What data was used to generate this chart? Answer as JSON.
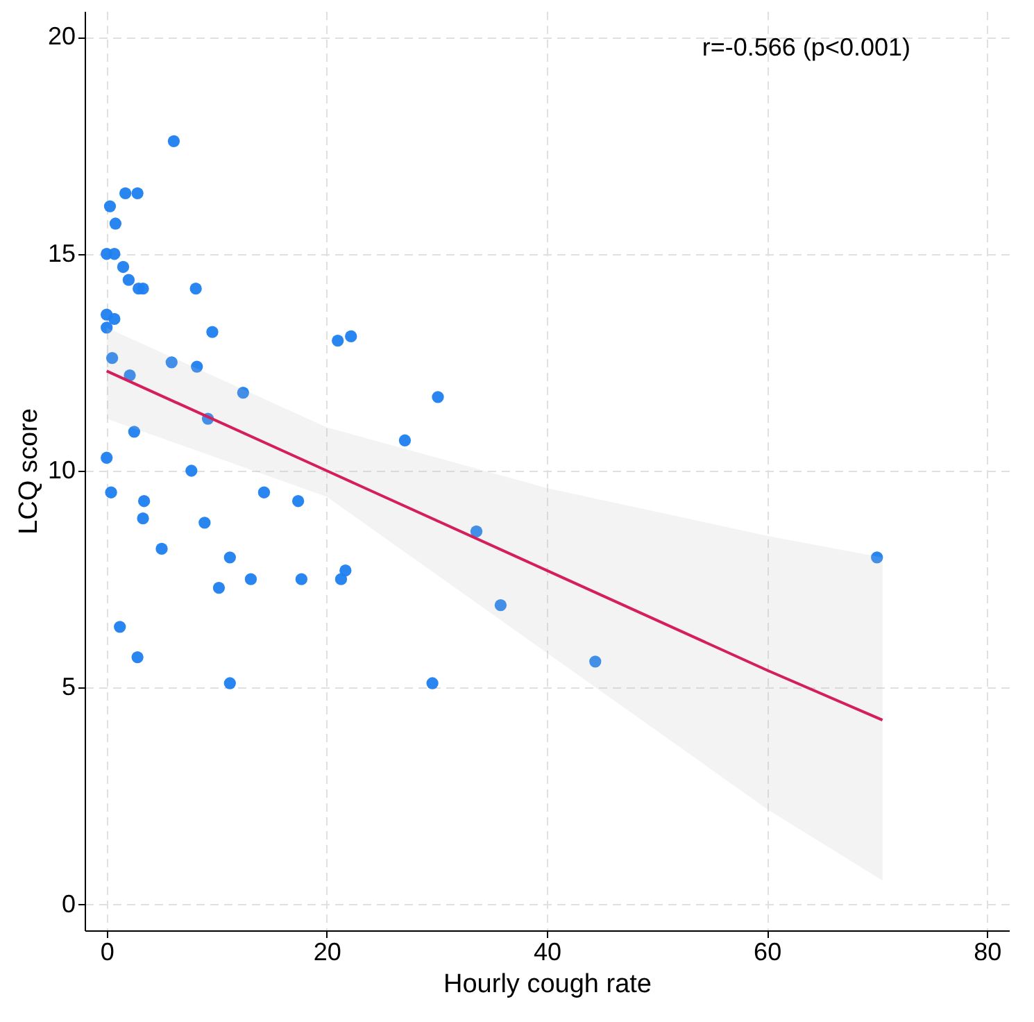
{
  "chart_data": {
    "type": "scatter",
    "xlabel": "Hourly cough rate",
    "ylabel": "LCQ score",
    "annotations": [
      "r=-0.566 (p<0.001)"
    ],
    "xlim": [
      -2,
      82
    ],
    "ylim": [
      -0.6,
      20.6
    ],
    "xticks": [
      0,
      20,
      40,
      60,
      80
    ],
    "yticks": [
      0,
      5,
      10,
      15,
      20
    ],
    "grid": true,
    "marker": "circle",
    "series": [
      {
        "color": "#1e7ff0",
        "x": [
          6.1,
          1.7,
          2.8,
          0.3,
          0.8,
          0,
          0.7,
          1.5,
          2,
          2.9,
          3.3,
          8.1,
          0,
          0.7,
          0,
          9.6,
          21,
          22.2,
          0.5,
          5.9,
          8.2,
          2.1,
          12.4,
          30.1,
          9.2,
          27.1,
          2.5,
          0,
          7.7,
          0.4,
          3.4,
          3.3,
          14.3,
          17.4,
          8.9,
          33.6,
          5,
          11.2,
          13.1,
          10.2,
          17.7,
          21.7,
          21.3,
          70,
          35.8,
          1.2,
          2.8,
          11.2,
          29.6,
          44.4
        ],
        "values": [
          17.6,
          16.4,
          16.4,
          16.1,
          15.7,
          15,
          15,
          14.7,
          14.4,
          14.2,
          14.2,
          14.2,
          13.6,
          13.5,
          13.3,
          13.2,
          13,
          13.1,
          12.6,
          12.5,
          12.4,
          12.2,
          11.8,
          11.7,
          11.2,
          10.7,
          10.9,
          10.3,
          10,
          9.5,
          9.3,
          8.9,
          9.5,
          9.3,
          8.8,
          8.6,
          8.2,
          8,
          7.5,
          7.3,
          7.5,
          7.7,
          7.5,
          8,
          6.9,
          6.4,
          5.7,
          5.1,
          5.1,
          5.6
        ]
      },
      {
        "type": "line",
        "marker": "none",
        "line_style": "solid",
        "color": "#d41f5a",
        "x": [
          0,
          20,
          40,
          60,
          70.5
        ],
        "values": [
          12.3,
          10.0,
          7.7,
          5.4,
          4.25
        ],
        "lower": [
          11.2,
          9.4,
          5.8,
          2.2,
          0.55
        ],
        "upper": [
          13.3,
          11.0,
          9.6,
          8.5,
          8.0
        ]
      }
    ]
  }
}
